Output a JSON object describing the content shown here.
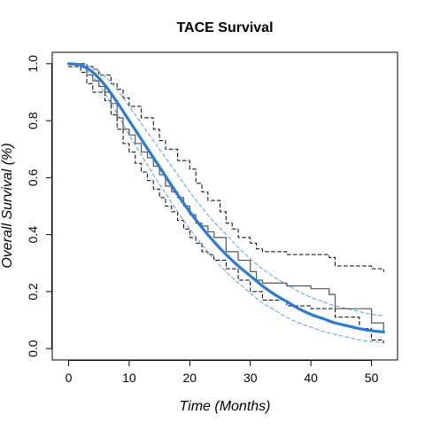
{
  "chart_data": {
    "type": "line",
    "title": "TACE Survival",
    "xlabel": "Time (Months)",
    "ylabel": "Overall Survival (%)",
    "xlim": [
      -2.7,
      54.3
    ],
    "ylim": [
      -0.04,
      1.04
    ],
    "x_ticks": [
      0,
      10,
      20,
      30,
      40,
      50
    ],
    "y_ticks": [
      0.0,
      0.2,
      0.4,
      0.6,
      0.8,
      1.0
    ],
    "x_tick_labels": [
      "0",
      "10",
      "20",
      "30",
      "40",
      "50"
    ],
    "y_tick_labels": [
      "0.0",
      "0.2",
      "0.4",
      "0.6",
      "0.8",
      "1.0"
    ],
    "grid": false,
    "colors": {
      "km": "#555555",
      "km_ci": "#000000",
      "fit": "#2b7bd6",
      "fit_ci": "#5aa0e6"
    },
    "series": [
      {
        "role": "km",
        "style": "step",
        "x": [
          0,
          2,
          3,
          4,
          5,
          6,
          7,
          8,
          9,
          10,
          11,
          12,
          13,
          14,
          15,
          16,
          17,
          18,
          19,
          20,
          21,
          22,
          23,
          24,
          26,
          28,
          30,
          31,
          32,
          36,
          40,
          43,
          44,
          50,
          52
        ],
        "y": [
          1.0,
          0.99,
          0.96,
          0.94,
          0.92,
          0.9,
          0.86,
          0.81,
          0.77,
          0.75,
          0.72,
          0.69,
          0.67,
          0.64,
          0.61,
          0.57,
          0.55,
          0.53,
          0.5,
          0.47,
          0.44,
          0.43,
          0.41,
          0.39,
          0.34,
          0.31,
          0.27,
          0.24,
          0.23,
          0.22,
          0.21,
          0.19,
          0.14,
          0.09,
          0.06
        ]
      },
      {
        "role": "km_ci",
        "style": "step",
        "x": [
          0,
          3,
          4,
          5,
          7,
          8,
          9,
          10,
          12,
          14,
          15,
          16,
          18,
          20,
          21,
          22,
          23,
          25,
          26,
          27,
          28,
          30,
          31,
          32,
          36,
          43,
          44,
          50,
          52
        ],
        "y": [
          1.0,
          0.99,
          0.98,
          0.96,
          0.93,
          0.91,
          0.88,
          0.85,
          0.81,
          0.77,
          0.73,
          0.7,
          0.66,
          0.63,
          0.58,
          0.55,
          0.52,
          0.48,
          0.44,
          0.42,
          0.39,
          0.37,
          0.35,
          0.34,
          0.33,
          0.32,
          0.29,
          0.28,
          0.27
        ]
      },
      {
        "role": "km_ci",
        "style": "step",
        "x": [
          0,
          2,
          3,
          4,
          6,
          7,
          8,
          9,
          10,
          11,
          12,
          13,
          14,
          15,
          16,
          17,
          18,
          19,
          20,
          21,
          22,
          23,
          24,
          26,
          28,
          30,
          32,
          36,
          40,
          44,
          48,
          50,
          52
        ],
        "y": [
          0.99,
          0.97,
          0.93,
          0.9,
          0.87,
          0.82,
          0.77,
          0.72,
          0.69,
          0.65,
          0.62,
          0.59,
          0.56,
          0.53,
          0.5,
          0.48,
          0.45,
          0.42,
          0.39,
          0.37,
          0.34,
          0.33,
          0.31,
          0.28,
          0.24,
          0.2,
          0.17,
          0.15,
          0.14,
          0.11,
          0.07,
          0.03,
          0.02
        ]
      },
      {
        "role": "fit",
        "style": "smooth",
        "x": [
          0,
          2,
          4,
          6,
          8,
          10,
          12,
          14,
          16,
          18,
          20,
          22,
          24,
          26,
          28,
          30,
          32,
          34,
          36,
          38,
          40,
          42,
          44,
          46,
          48,
          50,
          52
        ],
        "y": [
          1.0,
          0.995,
          0.97,
          0.925,
          0.865,
          0.8,
          0.735,
          0.67,
          0.605,
          0.54,
          0.48,
          0.425,
          0.375,
          0.33,
          0.29,
          0.255,
          0.22,
          0.19,
          0.165,
          0.14,
          0.12,
          0.105,
          0.09,
          0.08,
          0.07,
          0.063,
          0.058
        ]
      },
      {
        "role": "fit_ci",
        "style": "smooth",
        "x": [
          0,
          2,
          4,
          6,
          8,
          10,
          12,
          14,
          16,
          18,
          20,
          22,
          24,
          26,
          28,
          30,
          32,
          34,
          36,
          38,
          40,
          42,
          44,
          46,
          48,
          50,
          52
        ],
        "y": [
          1.0,
          0.998,
          0.985,
          0.955,
          0.91,
          0.85,
          0.79,
          0.73,
          0.67,
          0.61,
          0.55,
          0.495,
          0.445,
          0.4,
          0.355,
          0.315,
          0.28,
          0.25,
          0.225,
          0.2,
          0.18,
          0.165,
          0.15,
          0.14,
          0.13,
          0.12,
          0.115
        ]
      },
      {
        "role": "fit_ci",
        "style": "smooth",
        "x": [
          0,
          2,
          4,
          6,
          8,
          10,
          12,
          14,
          16,
          18,
          20,
          22,
          24,
          26,
          28,
          30,
          32,
          34,
          36,
          38,
          40,
          42,
          44,
          46,
          48,
          50,
          52
        ],
        "y": [
          1.0,
          0.99,
          0.955,
          0.895,
          0.825,
          0.75,
          0.68,
          0.61,
          0.545,
          0.48,
          0.42,
          0.365,
          0.315,
          0.27,
          0.23,
          0.195,
          0.16,
          0.135,
          0.11,
          0.09,
          0.075,
          0.06,
          0.05,
          0.04,
          0.03,
          0.025,
          0.02
        ]
      }
    ]
  }
}
